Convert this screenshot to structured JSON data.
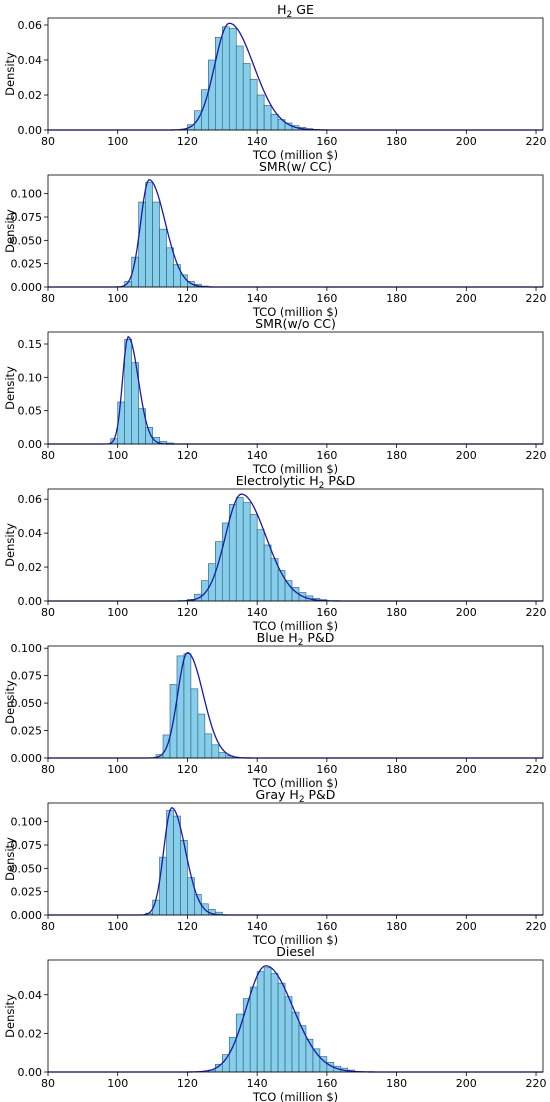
{
  "page": {
    "background": "#ffffff"
  },
  "style": {
    "bar_fill": "#87ceeb",
    "bar_stroke": "#2b5d73",
    "kde_color": "#1a1aa8",
    "axes_color": "#000000"
  },
  "chart_data": [
    {
      "type": "bar",
      "title": "H₂ GE",
      "title_main": "H",
      "title_sub": "2",
      "title_rest": " GE",
      "xlabel": "TCO (million $)",
      "ylabel": "Density",
      "xlim": [
        80,
        222
      ],
      "ylim": [
        0,
        0.064
      ],
      "xticks": [
        "80",
        "100",
        "120",
        "140",
        "160",
        "180",
        "200",
        "220"
      ],
      "yticks": [
        "0.00",
        "0.02",
        "0.04",
        "0.06"
      ],
      "bins": [
        {
          "x0": 118,
          "x1": 120,
          "v": 0.0005
        },
        {
          "x0": 120,
          "x1": 122,
          "v": 0.003
        },
        {
          "x0": 122,
          "x1": 124,
          "v": 0.011
        },
        {
          "x0": 124,
          "x1": 126,
          "v": 0.023
        },
        {
          "x0": 126,
          "x1": 128,
          "v": 0.04
        },
        {
          "x0": 128,
          "x1": 130,
          "v": 0.053
        },
        {
          "x0": 130,
          "x1": 132,
          "v": 0.059
        },
        {
          "x0": 132,
          "x1": 134,
          "v": 0.058
        },
        {
          "x0": 134,
          "x1": 136,
          "v": 0.048
        },
        {
          "x0": 136,
          "x1": 138,
          "v": 0.038
        },
        {
          "x0": 138,
          "x1": 140,
          "v": 0.029
        },
        {
          "x0": 140,
          "x1": 142,
          "v": 0.02
        },
        {
          "x0": 142,
          "x1": 144,
          "v": 0.014
        },
        {
          "x0": 144,
          "x1": 146,
          "v": 0.009
        },
        {
          "x0": 146,
          "x1": 148,
          "v": 0.006
        },
        {
          "x0": 148,
          "x1": 150,
          "v": 0.004
        },
        {
          "x0": 150,
          "x1": 152,
          "v": 0.0025
        },
        {
          "x0": 152,
          "x1": 154,
          "v": 0.0015
        },
        {
          "x0": 154,
          "x1": 156,
          "v": 0.0008
        },
        {
          "x0": 156,
          "x1": 158,
          "v": 0.0004
        }
      ],
      "kde": {
        "mode": 132,
        "peak": 0.061,
        "sl": 4.2,
        "sr": 7.0
      }
    },
    {
      "type": "bar",
      "title": "SMR(w/ CC)",
      "title_main": "SMR(w/ CC)",
      "title_sub": "",
      "title_rest": "",
      "xlabel": "TCO (million $)",
      "ylabel": "Density",
      "xlim": [
        80,
        222
      ],
      "ylim": [
        0,
        0.12
      ],
      "xticks": [
        "80",
        "100",
        "120",
        "140",
        "160",
        "180",
        "200",
        "220"
      ],
      "yticks": [
        "0.000",
        "0.025",
        "0.050",
        "0.075",
        "0.100"
      ],
      "bins": [
        {
          "x0": 102,
          "x1": 104,
          "v": 0.006
        },
        {
          "x0": 104,
          "x1": 106,
          "v": 0.032
        },
        {
          "x0": 106,
          "x1": 108,
          "v": 0.091
        },
        {
          "x0": 108,
          "x1": 110,
          "v": 0.112
        },
        {
          "x0": 110,
          "x1": 112,
          "v": 0.091
        },
        {
          "x0": 112,
          "x1": 114,
          "v": 0.062
        },
        {
          "x0": 114,
          "x1": 116,
          "v": 0.042
        },
        {
          "x0": 116,
          "x1": 118,
          "v": 0.024
        },
        {
          "x0": 118,
          "x1": 120,
          "v": 0.013
        },
        {
          "x0": 120,
          "x1": 122,
          "v": 0.006
        },
        {
          "x0": 122,
          "x1": 124,
          "v": 0.003
        },
        {
          "x0": 124,
          "x1": 126,
          "v": 0.001
        }
      ],
      "kde": {
        "mode": 109,
        "peak": 0.115,
        "sl": 2.4,
        "sr": 4.6
      }
    },
    {
      "type": "bar",
      "title": "SMR(w/o CC)",
      "title_main": "SMR(w/o CC)",
      "title_sub": "",
      "title_rest": "",
      "xlabel": "TCO (million $)",
      "ylabel": "Density",
      "xlim": [
        80,
        222
      ],
      "ylim": [
        0,
        0.168
      ],
      "xticks": [
        "80",
        "100",
        "120",
        "140",
        "160",
        "180",
        "200",
        "220"
      ],
      "yticks": [
        "0.00",
        "0.05",
        "0.10",
        "0.15"
      ],
      "bins": [
        {
          "x0": 98,
          "x1": 100,
          "v": 0.008
        },
        {
          "x0": 100,
          "x1": 102,
          "v": 0.063
        },
        {
          "x0": 102,
          "x1": 104,
          "v": 0.157
        },
        {
          "x0": 104,
          "x1": 106,
          "v": 0.122
        },
        {
          "x0": 106,
          "x1": 108,
          "v": 0.053
        },
        {
          "x0": 108,
          "x1": 110,
          "v": 0.025
        },
        {
          "x0": 110,
          "x1": 112,
          "v": 0.01
        },
        {
          "x0": 112,
          "x1": 114,
          "v": 0.004
        },
        {
          "x0": 114,
          "x1": 116,
          "v": 0.0015
        }
      ],
      "kde": {
        "mode": 103,
        "peak": 0.161,
        "sl": 1.6,
        "sr": 2.9
      }
    },
    {
      "type": "bar",
      "title": "Electrolytic H₂ P&D",
      "title_main": "Electrolytic H",
      "title_sub": "2",
      "title_rest": " P&D",
      "xlabel": "TCO (million $)",
      "ylabel": "Density",
      "xlim": [
        80,
        222
      ],
      "ylim": [
        0,
        0.066
      ],
      "xticks": [
        "80",
        "100",
        "120",
        "140",
        "160",
        "180",
        "200",
        "220"
      ],
      "yticks": [
        "0.00",
        "0.02",
        "0.04",
        "0.06"
      ],
      "bins": [
        {
          "x0": 120,
          "x1": 122,
          "v": 0.001
        },
        {
          "x0": 122,
          "x1": 124,
          "v": 0.004
        },
        {
          "x0": 124,
          "x1": 126,
          "v": 0.012
        },
        {
          "x0": 126,
          "x1": 128,
          "v": 0.022
        },
        {
          "x0": 128,
          "x1": 130,
          "v": 0.035
        },
        {
          "x0": 130,
          "x1": 132,
          "v": 0.046
        },
        {
          "x0": 132,
          "x1": 134,
          "v": 0.057
        },
        {
          "x0": 134,
          "x1": 136,
          "v": 0.061
        },
        {
          "x0": 136,
          "x1": 138,
          "v": 0.058
        },
        {
          "x0": 138,
          "x1": 140,
          "v": 0.051
        },
        {
          "x0": 140,
          "x1": 142,
          "v": 0.042
        },
        {
          "x0": 142,
          "x1": 144,
          "v": 0.033
        },
        {
          "x0": 144,
          "x1": 146,
          "v": 0.025
        },
        {
          "x0": 146,
          "x1": 148,
          "v": 0.018
        },
        {
          "x0": 148,
          "x1": 150,
          "v": 0.012
        },
        {
          "x0": 150,
          "x1": 152,
          "v": 0.008
        },
        {
          "x0": 152,
          "x1": 154,
          "v": 0.005
        },
        {
          "x0": 154,
          "x1": 156,
          "v": 0.003
        },
        {
          "x0": 156,
          "x1": 158,
          "v": 0.0015
        },
        {
          "x0": 158,
          "x1": 160,
          "v": 0.0008
        }
      ],
      "kde": {
        "mode": 135.5,
        "peak": 0.063,
        "sl": 4.6,
        "sr": 7.0
      }
    },
    {
      "type": "bar",
      "title": "Blue H₂ P&D",
      "title_main": "Blue H",
      "title_sub": "2",
      "title_rest": " P&D",
      "xlabel": "TCO (million $)",
      "ylabel": "Density",
      "xlim": [
        80,
        222
      ],
      "ylim": [
        0,
        0.102
      ],
      "xticks": [
        "80",
        "100",
        "120",
        "140",
        "160",
        "180",
        "200",
        "220"
      ],
      "yticks": [
        "0.000",
        "0.025",
        "0.050",
        "0.075",
        "0.100"
      ],
      "bins": [
        {
          "x0": 111,
          "x1": 113,
          "v": 0.003
        },
        {
          "x0": 113,
          "x1": 115,
          "v": 0.021
        },
        {
          "x0": 115,
          "x1": 117,
          "v": 0.067
        },
        {
          "x0": 117,
          "x1": 119,
          "v": 0.093
        },
        {
          "x0": 119,
          "x1": 121,
          "v": 0.095
        },
        {
          "x0": 121,
          "x1": 123,
          "v": 0.063
        },
        {
          "x0": 123,
          "x1": 125,
          "v": 0.04
        },
        {
          "x0": 125,
          "x1": 127,
          "v": 0.022
        },
        {
          "x0": 127,
          "x1": 129,
          "v": 0.012
        },
        {
          "x0": 129,
          "x1": 131,
          "v": 0.005
        },
        {
          "x0": 131,
          "x1": 133,
          "v": 0.002
        }
      ],
      "kde": {
        "mode": 120,
        "peak": 0.096,
        "sl": 2.8,
        "sr": 4.5
      }
    },
    {
      "type": "bar",
      "title": "Gray H₂ P&D",
      "title_main": "Gray H",
      "title_sub": "2",
      "title_rest": " P&D",
      "xlabel": "TCO (million $)",
      "ylabel": "Density",
      "xlim": [
        80,
        222
      ],
      "ylim": [
        0,
        0.12
      ],
      "xticks": [
        "80",
        "100",
        "120",
        "140",
        "160",
        "180",
        "200",
        "220"
      ],
      "yticks": [
        "0.000",
        "0.025",
        "0.050",
        "0.075",
        "0.100"
      ],
      "bins": [
        {
          "x0": 108,
          "x1": 110,
          "v": 0.002
        },
        {
          "x0": 110,
          "x1": 112,
          "v": 0.016
        },
        {
          "x0": 112,
          "x1": 114,
          "v": 0.062
        },
        {
          "x0": 114,
          "x1": 116,
          "v": 0.112
        },
        {
          "x0": 116,
          "x1": 118,
          "v": 0.106
        },
        {
          "x0": 118,
          "x1": 120,
          "v": 0.08
        },
        {
          "x0": 120,
          "x1": 122,
          "v": 0.04
        },
        {
          "x0": 122,
          "x1": 124,
          "v": 0.022
        },
        {
          "x0": 124,
          "x1": 126,
          "v": 0.012
        },
        {
          "x0": 126,
          "x1": 128,
          "v": 0.006
        },
        {
          "x0": 128,
          "x1": 130,
          "v": 0.003
        }
      ],
      "kde": {
        "mode": 115.5,
        "peak": 0.115,
        "sl": 2.3,
        "sr": 3.9
      }
    },
    {
      "type": "bar",
      "title": "Diesel",
      "title_main": "Diesel",
      "title_sub": "",
      "title_rest": "",
      "xlabel": "TCO (million $)",
      "ylabel": "Density",
      "xlim": [
        80,
        222
      ],
      "ylim": [
        0,
        0.058
      ],
      "xticks": [
        "80",
        "100",
        "120",
        "140",
        "160",
        "180",
        "200",
        "220"
      ],
      "yticks": [
        "0.00",
        "0.02",
        "0.04"
      ],
      "bins": [
        {
          "x0": 126,
          "x1": 128,
          "v": 0.001
        },
        {
          "x0": 128,
          "x1": 130,
          "v": 0.004
        },
        {
          "x0": 130,
          "x1": 132,
          "v": 0.009
        },
        {
          "x0": 132,
          "x1": 134,
          "v": 0.018
        },
        {
          "x0": 134,
          "x1": 136,
          "v": 0.03
        },
        {
          "x0": 136,
          "x1": 138,
          "v": 0.038
        },
        {
          "x0": 138,
          "x1": 140,
          "v": 0.044
        },
        {
          "x0": 140,
          "x1": 142,
          "v": 0.052
        },
        {
          "x0": 142,
          "x1": 144,
          "v": 0.054
        },
        {
          "x0": 144,
          "x1": 146,
          "v": 0.051
        },
        {
          "x0": 146,
          "x1": 148,
          "v": 0.046
        },
        {
          "x0": 148,
          "x1": 150,
          "v": 0.039
        },
        {
          "x0": 150,
          "x1": 152,
          "v": 0.031
        },
        {
          "x0": 152,
          "x1": 154,
          "v": 0.024
        },
        {
          "x0": 154,
          "x1": 156,
          "v": 0.017
        },
        {
          "x0": 156,
          "x1": 158,
          "v": 0.012
        },
        {
          "x0": 158,
          "x1": 160,
          "v": 0.008
        },
        {
          "x0": 160,
          "x1": 162,
          "v": 0.005
        },
        {
          "x0": 162,
          "x1": 164,
          "v": 0.003
        },
        {
          "x0": 164,
          "x1": 166,
          "v": 0.002
        },
        {
          "x0": 166,
          "x1": 168,
          "v": 0.001
        }
      ],
      "kde": {
        "mode": 142.5,
        "peak": 0.055,
        "sl": 5.6,
        "sr": 7.8
      }
    }
  ]
}
